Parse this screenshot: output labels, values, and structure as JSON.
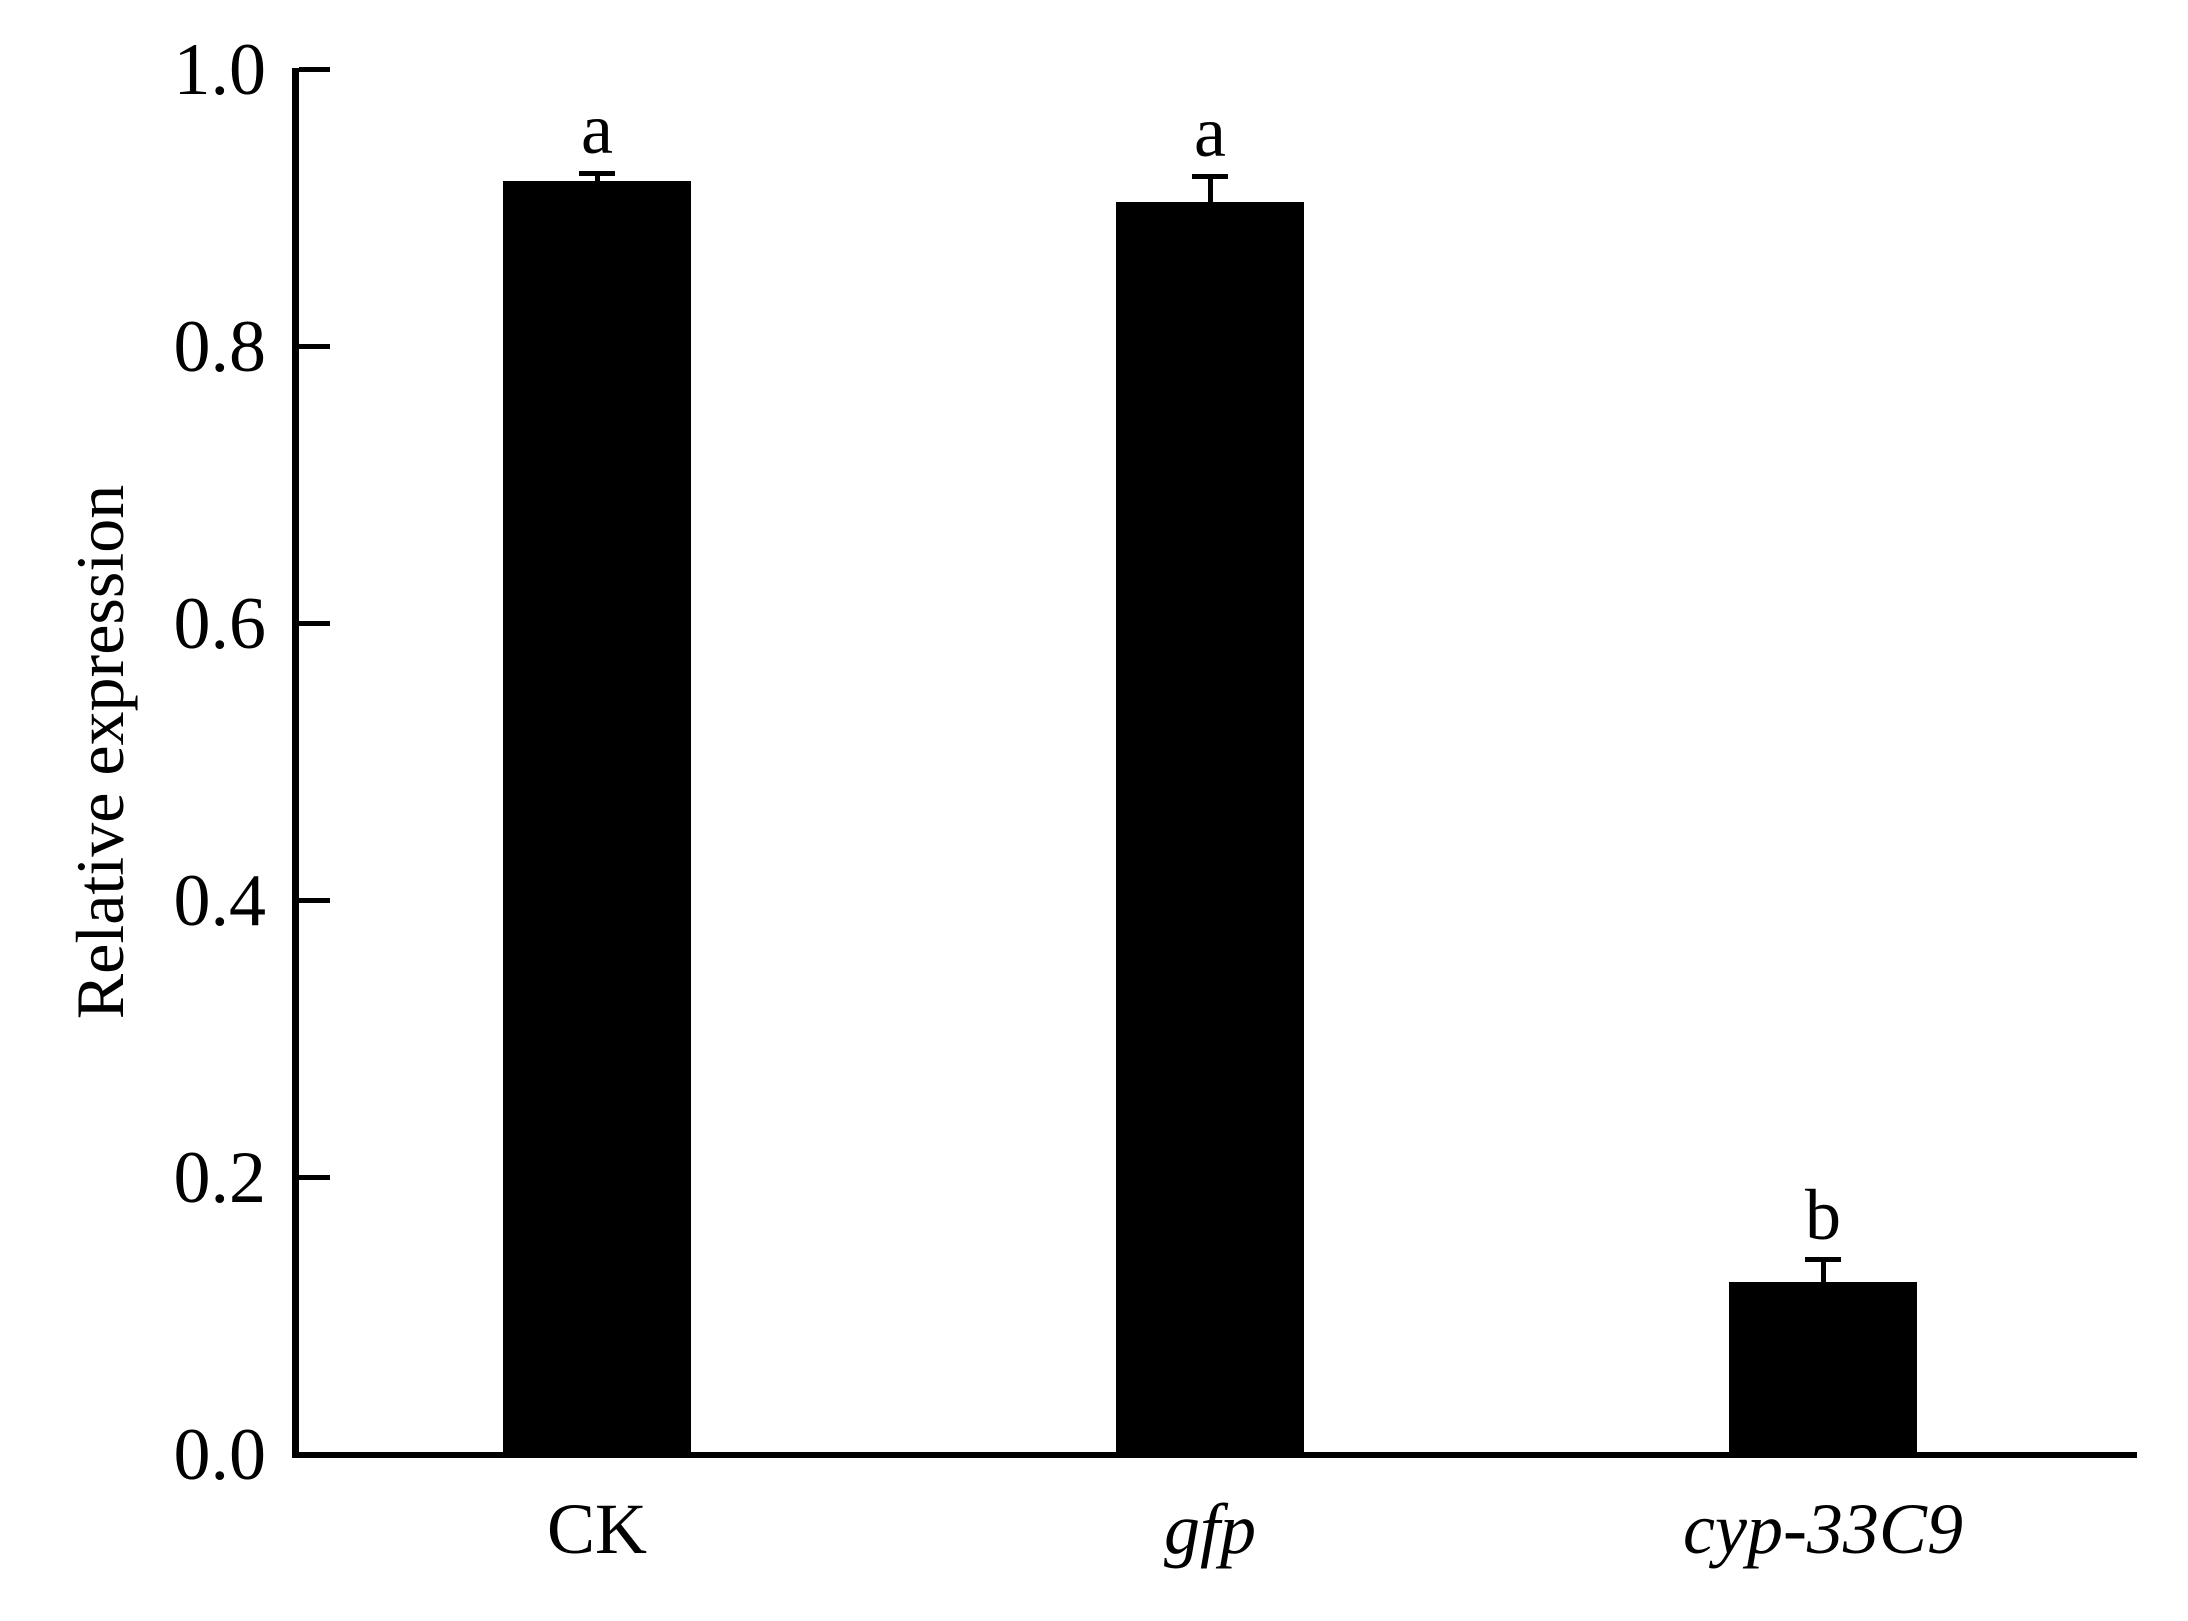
{
  "figure": {
    "background": "#ffffff",
    "text_color": "#000000"
  },
  "chart_data": {
    "type": "bar",
    "title": "",
    "xlabel": "",
    "ylabel": "Relative expression",
    "ylim": [
      0.0,
      1.0
    ],
    "yticks": [
      0.0,
      0.2,
      0.4,
      0.6,
      0.8,
      1.0
    ],
    "ytick_labels": [
      "0.0",
      "0.2",
      "0.4",
      "0.6",
      "0.8",
      "1.0"
    ],
    "grid": false,
    "legend": false,
    "bar_color": "#000000",
    "axis_color": "#000000",
    "error_bar_direction": "upper",
    "categories": [
      "CK",
      "gfp",
      "cyp-33C9"
    ],
    "category_styles": [
      "normal",
      "italic",
      "italic"
    ],
    "values": [
      0.92,
      0.905,
      0.125
    ],
    "errors_plus": [
      0.007,
      0.02,
      0.018
    ],
    "significance_letters": [
      "a",
      "a",
      "b"
    ]
  }
}
